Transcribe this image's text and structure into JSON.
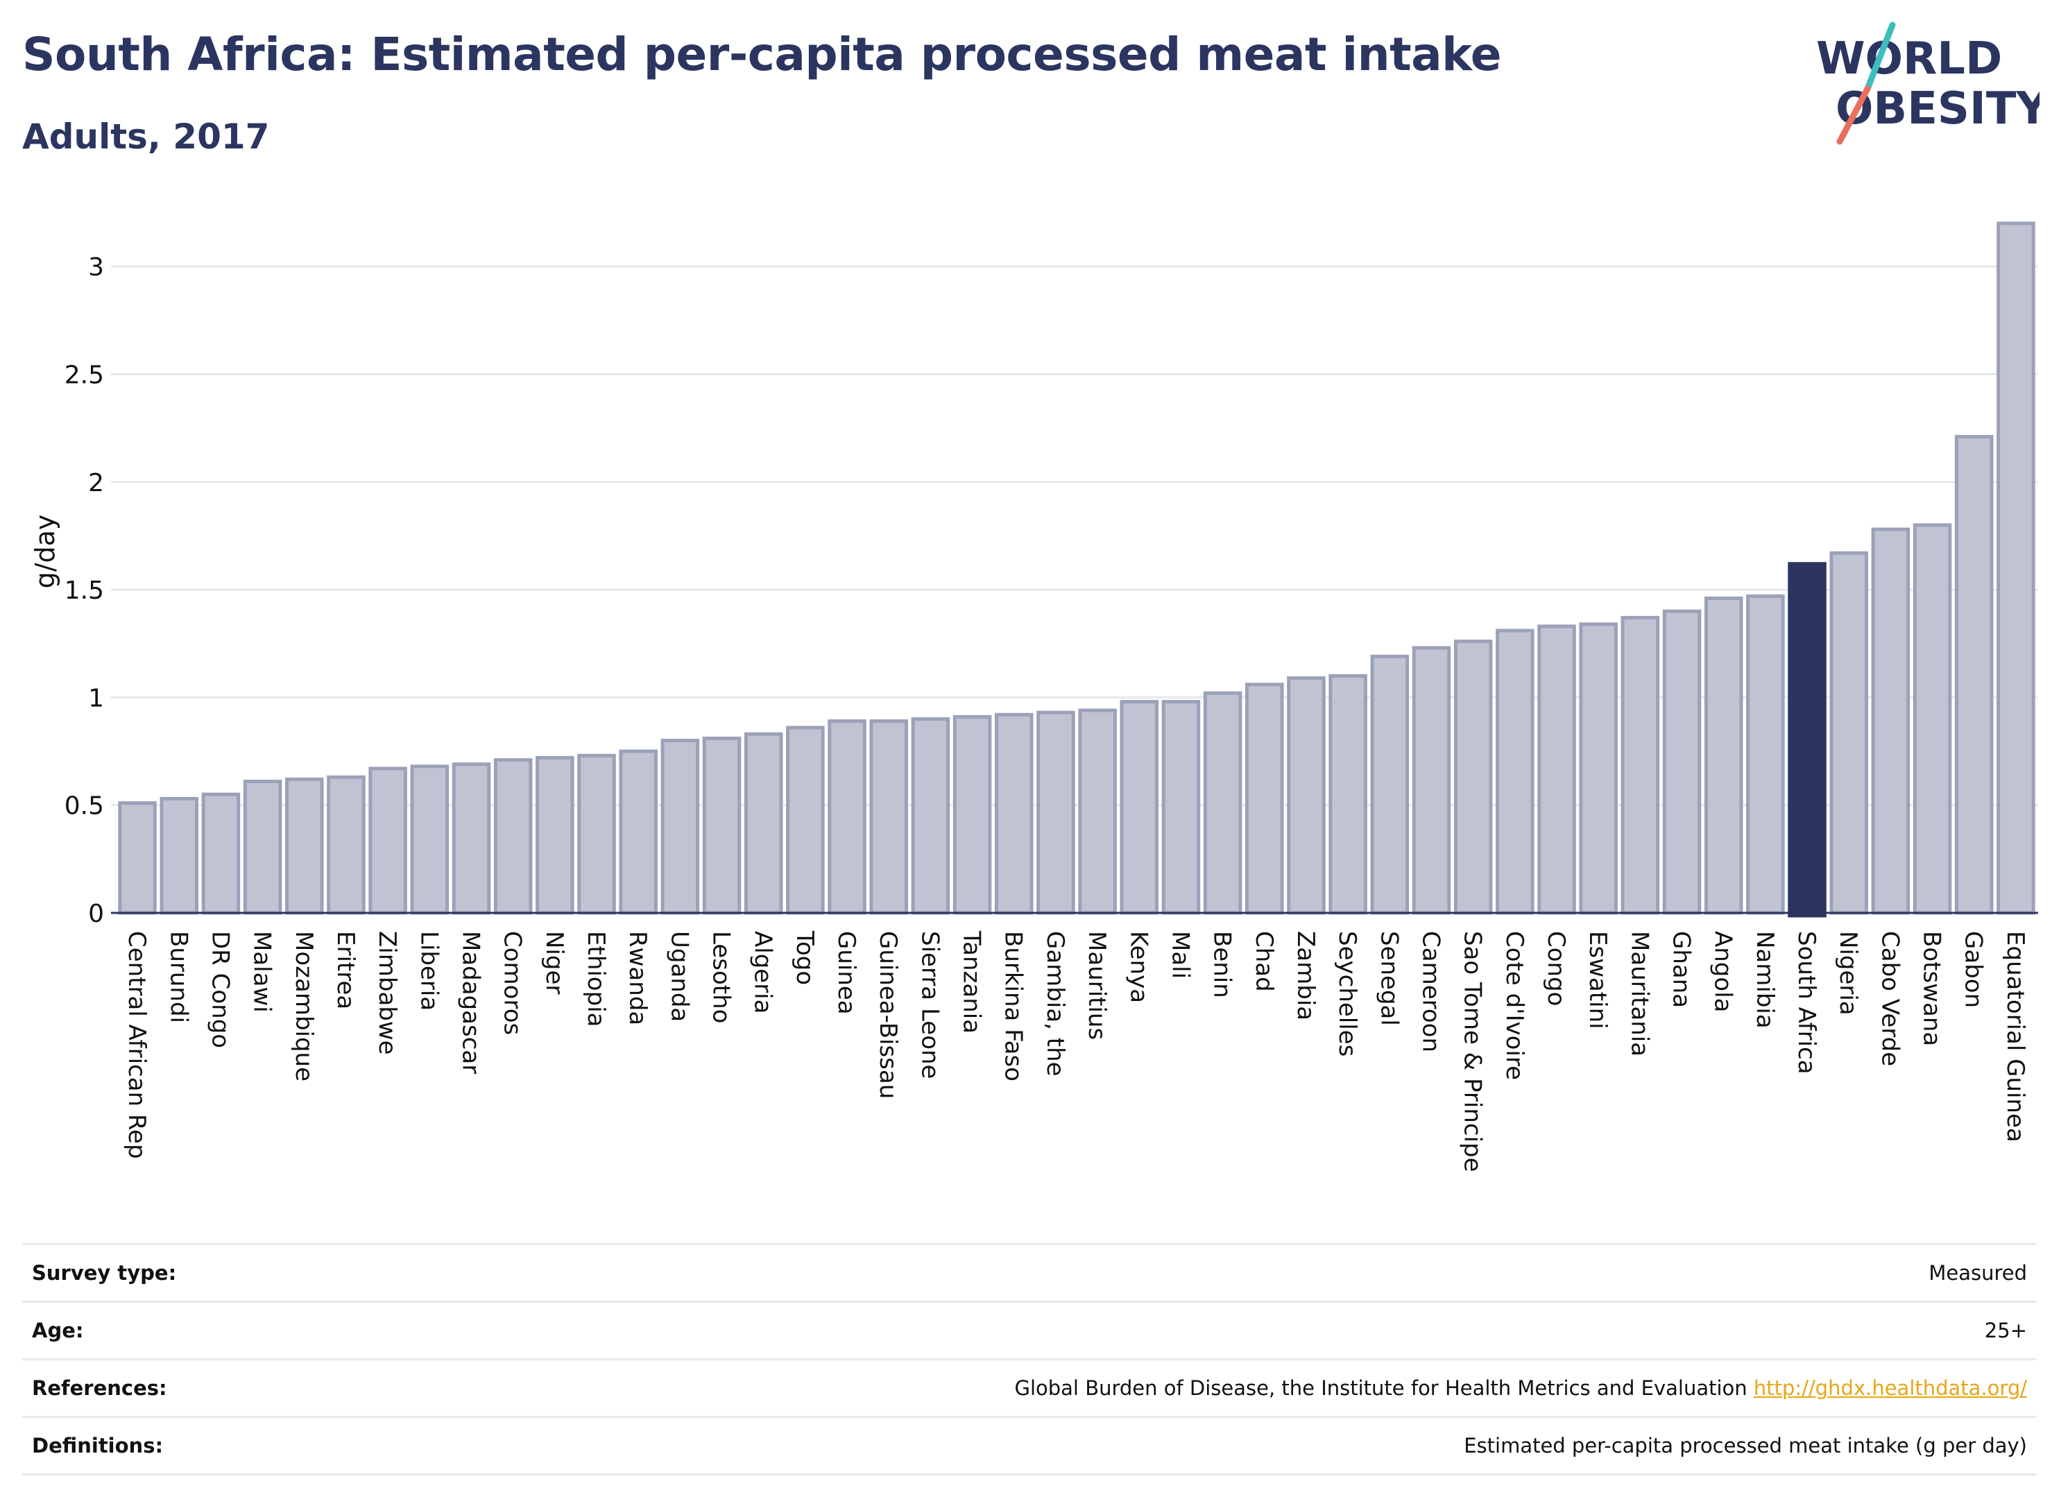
{
  "header": {
    "title": "South Africa: Estimated per-capita processed meat intake",
    "subtitle": "Adults, 2017",
    "logo_line1": "WORLD",
    "logo_line2": "OBESITY"
  },
  "colors": {
    "highlight": "#2b3560",
    "bar": "#c0c4d2",
    "bar_edge": "#9ca1b9",
    "title": "#2b3560",
    "link": "#e8a517",
    "logo_teal": "#3dbdbd",
    "logo_coral": "#e8705e"
  },
  "chart_data": {
    "type": "bar",
    "ylabel": "g/day",
    "xlabel": "",
    "ylim": [
      0,
      3.2
    ],
    "yticks": [
      0,
      0.5,
      1,
      1.5,
      2,
      2.5,
      3
    ],
    "ytick_labels": [
      "0",
      "0.5",
      "1",
      "1.5",
      "2",
      "2.5",
      "3"
    ],
    "grid": true,
    "highlight": "South Africa",
    "categories": [
      "Central African Rep",
      "Burundi",
      "DR Congo",
      "Malawi",
      "Mozambique",
      "Eritrea",
      "Zimbabwe",
      "Liberia",
      "Madagascar",
      "Comoros",
      "Niger",
      "Ethiopia",
      "Rwanda",
      "Uganda",
      "Lesotho",
      "Algeria",
      "Togo",
      "Guinea",
      "Guinea-Bissau",
      "Sierra Leone",
      "Tanzania",
      "Burkina Faso",
      "Gambia, the",
      "Mauritius",
      "Kenya",
      "Mali",
      "Benin",
      "Chad",
      "Zambia",
      "Seychelles",
      "Senegal",
      "Cameroon",
      "Sao Tome & Principe",
      "Cote d'Ivoire",
      "Congo",
      "Eswatini",
      "Mauritania",
      "Ghana",
      "Angola",
      "Namibia",
      "South Africa",
      "Nigeria",
      "Cabo Verde",
      "Botswana",
      "Gabon",
      "Equatorial Guinea"
    ],
    "values": [
      0.51,
      0.53,
      0.55,
      0.61,
      0.62,
      0.63,
      0.67,
      0.68,
      0.69,
      0.71,
      0.72,
      0.73,
      0.75,
      0.8,
      0.81,
      0.83,
      0.86,
      0.89,
      0.89,
      0.9,
      0.91,
      0.92,
      0.93,
      0.94,
      0.98,
      0.98,
      1.02,
      1.06,
      1.09,
      1.1,
      1.19,
      1.23,
      1.26,
      1.31,
      1.33,
      1.34,
      1.37,
      1.4,
      1.46,
      1.47,
      1.62,
      1.67,
      1.78,
      1.8,
      2.21,
      3.2
    ]
  },
  "info": {
    "rows": [
      {
        "label": "Survey type:",
        "value": "Measured"
      },
      {
        "label": "Age:",
        "value": "25+"
      },
      {
        "label": "References:",
        "value": "Global Burden of Disease, the Institute for Health Metrics and Evaluation",
        "link": "http://ghdx.healthdata.org/"
      },
      {
        "label": "Definitions:",
        "value": "Estimated per-capita processed meat intake (g per day)"
      }
    ]
  }
}
